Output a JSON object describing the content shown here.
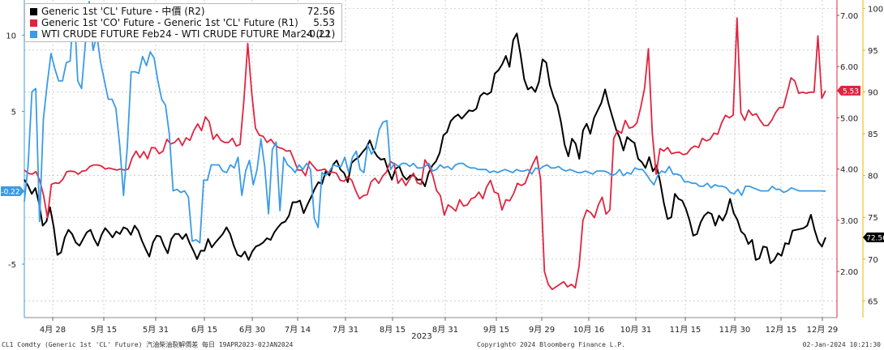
{
  "chart_data": {
    "type": "line",
    "x_axis": {
      "year_label": "2023",
      "ticks": [
        "4月 28",
        "5月 15",
        "5月 31",
        "6月 15",
        "6月 30",
        "7月 14",
        "7月 31",
        "8月 15",
        "8月 31",
        "9月 15",
        "9月 29",
        "10月 16",
        "10月 31",
        "11月 15",
        "11月 30",
        "12月 15",
        "12月 29"
      ]
    },
    "left_axis": {
      "range": [
        -8.5,
        12.3
      ],
      "ticks": [
        10,
        5,
        -5
      ]
    },
    "right_axis_1": {
      "range": [
        1.1,
        7.3
      ],
      "ticks": [
        7,
        6,
        5,
        4,
        3,
        2
      ]
    },
    "right_axis_2": {
      "range": [
        63,
        101
      ],
      "ticks": [
        100,
        95,
        90,
        85,
        80,
        75,
        70,
        65
      ]
    },
    "series": [
      {
        "name": "Generic 1st 'CL' Future - 中價 (R2)",
        "legend_value": "72.56",
        "axis": "right_axis_2",
        "color": "#000000",
        "values": [
          79.5,
          78.8,
          77.8,
          78.5,
          76.7,
          74.0,
          74.5,
          76.2,
          73.8,
          70.5,
          70.8,
          72.6,
          73.5,
          73.0,
          72.0,
          71.6,
          72.4,
          73.2,
          73.5,
          72.4,
          71.6,
          72.9,
          73.7,
          73.2,
          72.6,
          73.3,
          73.0,
          73.8,
          73.6,
          72.9,
          74.0,
          73.4,
          72.2,
          71.2,
          70.3,
          72.0,
          72.8,
          72.7,
          71.6,
          70.7,
          72.4,
          73.0,
          73.0,
          72.4,
          73.0,
          71.9,
          71.0,
          70.0,
          71.0,
          71.0,
          72.4,
          71.4,
          72.0,
          72.5,
          73.0,
          73.8,
          73.0,
          71.6,
          70.5,
          70.3,
          70.9,
          69.9,
          70.9,
          71.5,
          71.7,
          72.0,
          72.5,
          72.3,
          73.2,
          73.8,
          74.3,
          74.5,
          75.2,
          76.8,
          76.8,
          77.0,
          75.5,
          76.5,
          77.4,
          78.4,
          79.2,
          79.0,
          80.5,
          80.0,
          81.3,
          81.8,
          80.7,
          80.3,
          79.2,
          81.5,
          81.9,
          82.2,
          82.8,
          83.3,
          84.2,
          83.0,
          82.3,
          81.9,
          82.0,
          80.6,
          79.5,
          80.8,
          81.1,
          80.0,
          79.5,
          80.0,
          80.0,
          79.5,
          79.5,
          78.7,
          80.3,
          81.2,
          81.7,
          82.7,
          84.8,
          85.2,
          86.5,
          87.0,
          87.3,
          86.8,
          87.3,
          87.8,
          87.7,
          88.0,
          89.5,
          89.9,
          89.7,
          90.0,
          92.2,
          92.6,
          93.3,
          94.3,
          93.0,
          96.2,
          97.0,
          94.5,
          91.5,
          90.3,
          90.6,
          90.0,
          91.2,
          93.9,
          93.5,
          90.8,
          89.4,
          88.4,
          86.4,
          83.7,
          82.3,
          84.4,
          83.8,
          82.0,
          85.4,
          86.2,
          85.0,
          86.9,
          87.8,
          88.7,
          90.3,
          88.5,
          87.0,
          85.5,
          84.5,
          83.0,
          84.6,
          84.2,
          83.9,
          82.0,
          81.6,
          80.9,
          82.2,
          80.5,
          81.2,
          79.2,
          76.7,
          74.8,
          75.0,
          77.8,
          77.2,
          77.0,
          76.0,
          74.6,
          72.8,
          73.0,
          74.4,
          75.2,
          75.6,
          75.4,
          74.0,
          75.2,
          74.6,
          75.5,
          77.2,
          75.5,
          74.7,
          73.3,
          72.9,
          71.8,
          72.3,
          69.9,
          70.1,
          71.5,
          71.4,
          69.5,
          69.9,
          70.7,
          70.4,
          71.9,
          71.8,
          73.4,
          73.5,
          73.6,
          73.7,
          74.0,
          75.3,
          73.5,
          72.1,
          71.5,
          72.6
        ]
      },
      {
        "name": "Generic 1st 'CO' Future - Generic 1st 'CL' Future (R1)",
        "legend_value": "5.53",
        "axis": "right_axis_1",
        "color": "#e0243f",
        "values": [
          3.98,
          3.92,
          3.9,
          3.95,
          3.78,
          3.48,
          3.05,
          3.7,
          3.73,
          3.72,
          3.8,
          3.95,
          3.96,
          3.95,
          3.9,
          3.96,
          3.97,
          4.05,
          4.08,
          4.08,
          4.06,
          4.0,
          4.02,
          4.0,
          3.98,
          4.0,
          3.98,
          4.0,
          4.22,
          4.35,
          4.22,
          4.34,
          4.2,
          4.42,
          4.41,
          4.3,
          4.35,
          4.58,
          4.49,
          4.52,
          4.6,
          4.46,
          4.61,
          4.56,
          4.75,
          4.88,
          4.75,
          5.02,
          4.92,
          4.58,
          4.68,
          4.56,
          4.52,
          4.52,
          4.6,
          4.45,
          4.48,
          5.35,
          6.45,
          5.5,
          4.8,
          4.66,
          4.64,
          4.52,
          4.58,
          4.48,
          4.42,
          4.4,
          4.35,
          4.36,
          4.18,
          3.98,
          3.98,
          3.87,
          4.15,
          4.06,
          3.97,
          3.98,
          4.0,
          3.92,
          3.94,
          3.92,
          3.78,
          3.76,
          3.85,
          3.78,
          3.58,
          3.42,
          3.48,
          3.5,
          3.75,
          3.82,
          3.72,
          3.86,
          3.94,
          4.15,
          4.1,
          3.72,
          3.82,
          3.68,
          3.8,
          3.92,
          3.73,
          3.7,
          4.18,
          4.05,
          3.88,
          3.58,
          3.48,
          3.1,
          3.3,
          3.25,
          3.18,
          3.4,
          3.28,
          3.3,
          3.42,
          3.45,
          3.55,
          3.42,
          3.65,
          3.78,
          3.55,
          3.52,
          3.2,
          3.4,
          3.38,
          3.52,
          3.72,
          3.68,
          3.72,
          3.92,
          4.1,
          4.25,
          3.8,
          2.0,
          1.75,
          1.65,
          1.7,
          1.75,
          1.8,
          1.7,
          1.75,
          1.68,
          2.1,
          3.0,
          3.2,
          3.15,
          3.05,
          3.3,
          3.45,
          3.12,
          3.2,
          4.6,
          4.75,
          4.7,
          4.95,
          4.8,
          4.82,
          4.9,
          5.2,
          5.58,
          6.35,
          4.7,
          3.9,
          4.4,
          4.35,
          4.42,
          4.3,
          4.32,
          4.33,
          4.28,
          4.3,
          4.4,
          4.45,
          4.42,
          4.6,
          4.55,
          4.58,
          4.7,
          4.68,
          4.9,
          5.05,
          5.0,
          5.05,
          6.95,
          5.1,
          4.95,
          5.15,
          5.05,
          5.08,
          4.95,
          4.85,
          4.85,
          4.95,
          5.1,
          5.2,
          5.2,
          5.48,
          5.78,
          5.72,
          5.48,
          5.5,
          5.48,
          5.5,
          5.5,
          6.6,
          5.38,
          5.53
        ]
      },
      {
        "name": "WTI CRUDE FUTURE Feb24 - WTI CRUDE FUTURE Mar24 (L1)",
        "legend_value": "-0.22",
        "axis": "left_axis",
        "color": "#3b9be6",
        "values": [
          -0.9,
          1.5,
          6.3,
          6.5,
          -2.2,
          4.5,
          6.8,
          8.8,
          7.8,
          7.0,
          7.0,
          8.2,
          8.3,
          12.0,
          7.0,
          6.5,
          9.5,
          12.2,
          9.0,
          10.0,
          8.2,
          7.0,
          5.8,
          5.8,
          5.2,
          2.8,
          -0.5,
          2.7,
          7.6,
          7.6,
          7.5,
          8.6,
          8.0,
          8.9,
          8.5,
          7.0,
          5.8,
          5.4,
          3.5,
          -0.2,
          -0.1,
          -0.3,
          -0.2,
          -0.6,
          -3.5,
          -3.4,
          -3.6,
          0.5,
          0.5,
          1.5,
          1.5,
          1.5,
          1.1,
          1.0,
          1.5,
          1.3,
          2.0,
          -0.5,
          1.1,
          1.8,
          0.2,
          1.2,
          3.2,
          1.4,
          -1.7,
          2.5,
          3.0,
          -1.5,
          2.0,
          1.5,
          1.3,
          1.0,
          1.5,
          1.2,
          1.6,
          1.2,
          -2.0,
          -2.6,
          1.0,
          0.8,
          1.1,
          1.5,
          1.4,
          1.4,
          2.0,
          1.0,
          2.0,
          2.4,
          1.2,
          1.0,
          2.8,
          2.2,
          2.6,
          3.8,
          4.3,
          4.4,
          1.2,
          1.6,
          1.4,
          1.6,
          1.6,
          1.4,
          1.6,
          1.3,
          1.3,
          1.4,
          1.6,
          1.1,
          1.2,
          1.5,
          1.3,
          1.4,
          1.2,
          1.5,
          1.6,
          1.6,
          1.4,
          1.3,
          1.3,
          1.2,
          1.2,
          1.2,
          1.0,
          1.1,
          1.0,
          1.1,
          1.2,
          1.1,
          1.0,
          1.2,
          1.1,
          1.1,
          1.2,
          0.9,
          1.3,
          1.2,
          1.4,
          1.5,
          1.3,
          1.3,
          1.4,
          1.2,
          1.1,
          1.2,
          1.1,
          1.0,
          1.0,
          1.1,
          1.0,
          0.9,
          1.1,
          1.1,
          1.1,
          1.0,
          0.8,
          0.9,
          1.2,
          0.8,
          1.0,
          0.9,
          1.3,
          1.2,
          1.2,
          0.9,
          0.5,
          0.2,
          0.8,
          1.1,
          1.0,
          1.4,
          0.9,
          0.9,
          0.8,
          0.4,
          0.4,
          0.3,
          0.3,
          0.1,
          0.1,
          0.3,
          0.0,
          0.2,
          0.1,
          0.1,
          0.0,
          -0.3,
          -0.4,
          -0.1,
          -0.5,
          0.1,
          0.1,
          0.0,
          -0.1,
          -0.2,
          -0.2,
          -0.2,
          0.1,
          -0.1,
          -0.1,
          -0.3,
          -0.2,
          0.0,
          -0.1,
          -0.2,
          -0.2,
          -0.2,
          -0.2,
          -0.2,
          -0.2,
          -0.2,
          -0.22
        ]
      }
    ],
    "last_value_tags": {
      "left": "-0.22",
      "right_1": "5.53",
      "right_2": "72.56"
    }
  },
  "footer": {
    "left": "CL1 Comdty (Generic 1st 'CL' Future) 汽油柴油裂解價差   每日 19APR2023-02JAN2024",
    "center": "Copyright© 2024 Bloomberg Finance L.P.",
    "right": "02-Jan-2024 10:21:30"
  }
}
